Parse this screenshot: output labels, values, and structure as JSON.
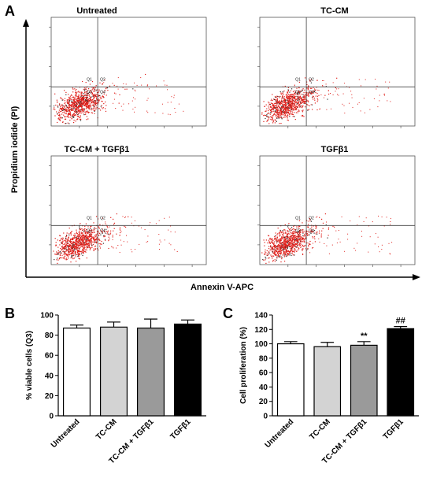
{
  "panel_labels": {
    "a": "A",
    "b": "B",
    "c": "C"
  },
  "panel_a": {
    "y_axis_label": "Propidium iodide (PI)",
    "x_axis_label": "Annexin V-APC",
    "plots": [
      {
        "title": "Untreated",
        "q1": "Q1",
        "q2": "Q2",
        "q3": "Q3",
        "q4": "Q4"
      },
      {
        "title": "TC-CM",
        "q1": "Q1",
        "q2": "Q2",
        "q3": "Q3",
        "q4": "Q4"
      },
      {
        "title": "TC-CM + TGFβ1",
        "q1": "Q1",
        "q2": "Q2",
        "q3": "Q3",
        "q4": "Q4"
      },
      {
        "title": "TGFβ1",
        "q1": "Q1",
        "q2": "Q2",
        "q3": "Q3",
        "q4": "Q4"
      }
    ],
    "dot_color": "#e0201b"
  },
  "chart_data": [
    {
      "type": "bar",
      "panel": "B",
      "categories": [
        "Untreated",
        "TC-CM",
        "TC-CM + TGFβ1",
        "TGFβ1"
      ],
      "values": [
        87,
        88,
        87,
        91
      ],
      "errors": [
        3,
        5,
        9,
        4
      ],
      "colors": [
        "#ffffff",
        "#d3d3d3",
        "#9a9a9a",
        "#000000"
      ],
      "ylabel": "% viable cells (Q3)",
      "ylim": [
        0,
        100
      ],
      "yticks": [
        "0",
        "20",
        "40",
        "60",
        "80",
        "100"
      ],
      "annotations": [
        "",
        "",
        "",
        ""
      ]
    },
    {
      "type": "bar",
      "panel": "C",
      "categories": [
        "Untreated",
        "TC-CM",
        "TC-CM + TGFβ1",
        "TGFβ1"
      ],
      "values": [
        100,
        96,
        98,
        121
      ],
      "errors": [
        3,
        6,
        5,
        3
      ],
      "colors": [
        "#ffffff",
        "#d3d3d3",
        "#9a9a9a",
        "#000000"
      ],
      "ylabel": "Cell proliferation (%)",
      "ylim": [
        0,
        140
      ],
      "yticks": [
        "0",
        "20",
        "40",
        "60",
        "80",
        "100",
        "120",
        "140"
      ],
      "annotations": [
        "",
        "",
        "**",
        "##"
      ]
    }
  ]
}
